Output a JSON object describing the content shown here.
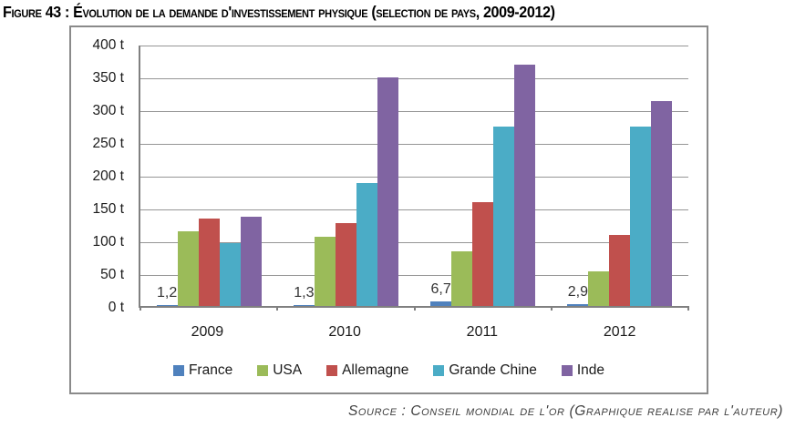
{
  "figure": {
    "title": "Figure 43 : Évolution de la demande d'investissement physique (selection de pays, 2009-2012)",
    "source": "Source : Conseil mondial de l'or (Graphique realise par l'auteur)"
  },
  "chart_data": {
    "type": "bar",
    "categories": [
      "2009",
      "2010",
      "2011",
      "2012"
    ],
    "series": [
      {
        "name": "France",
        "color": "#4F81BD",
        "values": [
          1.2,
          1.3,
          6.7,
          2.9
        ]
      },
      {
        "name": "USA",
        "color": "#9BBB59",
        "values": [
          114,
          106,
          84,
          53
        ]
      },
      {
        "name": "Allemagne",
        "color": "#C0504D",
        "values": [
          134,
          127,
          159,
          109
        ]
      },
      {
        "name": "Grande Chine",
        "color": "#4BACC6",
        "values": [
          96,
          187,
          273,
          274
        ]
      },
      {
        "name": "Inde",
        "color": "#8064A2",
        "values": [
          136,
          349,
          368,
          312
        ]
      }
    ],
    "data_labels": {
      "series": "France",
      "values": [
        "1,2",
        "1,3",
        "6,7",
        "2,9"
      ]
    },
    "ylim": [
      0,
      400
    ],
    "yticks": [
      400,
      350,
      300,
      250,
      200,
      150,
      100,
      50,
      0
    ],
    "ytick_labels": [
      "400 t",
      "350 t",
      "300 t",
      "250 t",
      "200 t",
      "150 t",
      "100 t",
      "50 t",
      "0 t"
    ],
    "unit": "t",
    "grid": true,
    "legend_position": "bottom",
    "gridline_color": "#969696",
    "axis_color": "#808080"
  }
}
